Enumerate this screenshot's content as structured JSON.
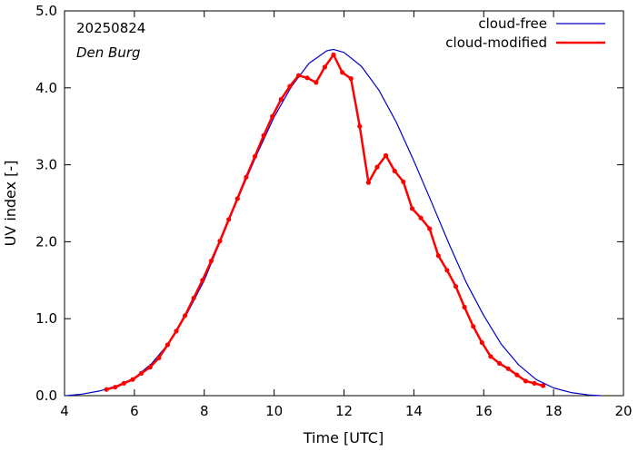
{
  "chart_data": {
    "type": "line",
    "date_label": "20250824",
    "station": "Den Burg",
    "xlabel": "Time  [UTC]",
    "ylabel": "UV index  [-]",
    "xlim": [
      4,
      20
    ],
    "ylim": [
      0,
      5
    ],
    "xticks": [
      4,
      6,
      8,
      10,
      12,
      14,
      16,
      18,
      20
    ],
    "xtick_labels": [
      "4",
      "6",
      "8",
      "10",
      "12",
      "14",
      "16",
      "18",
      "20"
    ],
    "yticks": [
      0,
      1,
      2,
      3,
      4,
      5
    ],
    "ytick_labels": [
      "0.0",
      "1.0",
      "2.0",
      "3.0",
      "4.0",
      "5.0"
    ],
    "legend_position": "top-right",
    "grid": false,
    "series": [
      {
        "name": "cloud-free",
        "color": "#0000cc",
        "markers": false,
        "x": [
          4.05,
          4.5,
          5.0,
          5.5,
          6.0,
          6.5,
          7.0,
          7.5,
          8.0,
          8.5,
          9.0,
          9.5,
          10.0,
          10.5,
          11.0,
          11.5,
          11.7,
          12.0,
          12.5,
          13.0,
          13.5,
          14.0,
          14.5,
          15.0,
          15.5,
          16.0,
          16.5,
          17.0,
          17.5,
          18.0,
          18.5,
          19.0,
          19.35
        ],
        "y": [
          0.0,
          0.02,
          0.06,
          0.13,
          0.23,
          0.42,
          0.69,
          1.06,
          1.5,
          2.05,
          2.6,
          3.13,
          3.62,
          4.02,
          4.32,
          4.48,
          4.5,
          4.46,
          4.28,
          3.97,
          3.55,
          3.05,
          2.52,
          1.98,
          1.47,
          1.04,
          0.67,
          0.4,
          0.21,
          0.1,
          0.04,
          0.01,
          0.0
        ]
      },
      {
        "name": "cloud-modified",
        "color": "#ff0000",
        "markers": true,
        "x": [
          5.2,
          5.45,
          5.7,
          5.95,
          6.2,
          6.45,
          6.7,
          6.95,
          7.2,
          7.45,
          7.7,
          7.95,
          8.2,
          8.45,
          8.7,
          8.95,
          9.2,
          9.45,
          9.7,
          9.95,
          10.2,
          10.45,
          10.7,
          10.95,
          11.2,
          11.45,
          11.7,
          11.95,
          12.2,
          12.45,
          12.7,
          12.95,
          13.2,
          13.45,
          13.7,
          13.95,
          14.2,
          14.45,
          14.7,
          14.95,
          15.2,
          15.45,
          15.7,
          15.95,
          16.2,
          16.45,
          16.7,
          16.95,
          17.2,
          17.45,
          17.7
        ],
        "y": [
          0.08,
          0.11,
          0.16,
          0.21,
          0.29,
          0.37,
          0.49,
          0.66,
          0.84,
          1.04,
          1.27,
          1.5,
          1.75,
          2.01,
          2.29,
          2.56,
          2.84,
          3.11,
          3.38,
          3.63,
          3.85,
          4.02,
          4.16,
          4.13,
          4.07,
          4.27,
          4.43,
          4.2,
          4.12,
          3.5,
          2.77,
          2.97,
          3.12,
          2.92,
          2.78,
          2.43,
          2.31,
          2.17,
          1.82,
          1.63,
          1.42,
          1.15,
          0.9,
          0.69,
          0.51,
          0.42,
          0.35,
          0.27,
          0.19,
          0.16,
          0.13
        ]
      }
    ]
  }
}
